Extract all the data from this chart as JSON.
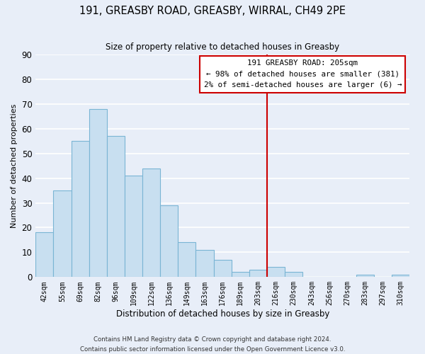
{
  "title": "191, GREASBY ROAD, GREASBY, WIRRAL, CH49 2PE",
  "subtitle": "Size of property relative to detached houses in Greasby",
  "xlabel": "Distribution of detached houses by size in Greasby",
  "ylabel": "Number of detached properties",
  "bar_labels": [
    "42sqm",
    "55sqm",
    "69sqm",
    "82sqm",
    "96sqm",
    "109sqm",
    "122sqm",
    "136sqm",
    "149sqm",
    "163sqm",
    "176sqm",
    "189sqm",
    "203sqm",
    "216sqm",
    "230sqm",
    "243sqm",
    "256sqm",
    "270sqm",
    "283sqm",
    "297sqm",
    "310sqm"
  ],
  "bar_values": [
    18,
    35,
    55,
    68,
    57,
    41,
    44,
    29,
    14,
    11,
    7,
    2,
    3,
    4,
    2,
    0,
    0,
    0,
    1,
    0,
    1
  ],
  "bar_color": "#c8dff0",
  "bar_edge_color": "#7ab5d4",
  "vline_color": "#cc0000",
  "ylim": [
    0,
    90
  ],
  "yticks": [
    0,
    10,
    20,
    30,
    40,
    50,
    60,
    70,
    80,
    90
  ],
  "annotation_title": "191 GREASBY ROAD: 205sqm",
  "annotation_line1": "← 98% of detached houses are smaller (381)",
  "annotation_line2": "2% of semi-detached houses are larger (6) →",
  "annotation_box_facecolor": "#ffffff",
  "annotation_box_edgecolor": "#cc0000",
  "footer_line1": "Contains HM Land Registry data © Crown copyright and database right 2024.",
  "footer_line2": "Contains public sector information licensed under the Open Government Licence v3.0.",
  "background_color": "#e8eef8",
  "plot_bg_color": "#e8eef8",
  "grid_color": "#ffffff"
}
